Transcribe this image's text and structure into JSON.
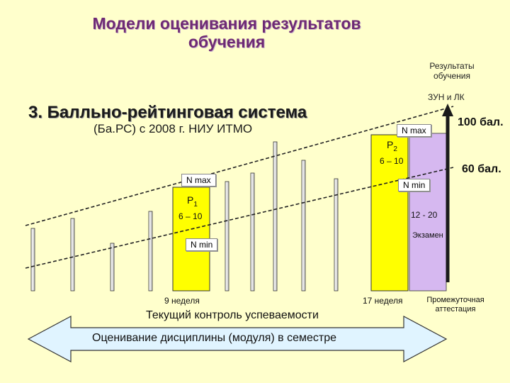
{
  "title_line1": "Модели оценивания результатов",
  "title_line2": "обучения",
  "system_title": "3. Балльно-рейтинговая система",
  "system_subtitle": "(Ба.РС) с 2008 г. НИУ ИТМО",
  "results_label": "Результаты обучения",
  "zun_label": "ЗУН и ЛК",
  "max_points": "100 бал.",
  "pass_points": "60 бал.",
  "p2": {
    "letter": "P",
    "index": "2",
    "range": "6 – 10",
    "n_max": "N max",
    "n_min": "N min"
  },
  "p1": {
    "letter": "P",
    "index": "1",
    "range": "6 – 10",
    "n_max": "N max",
    "n_min": "N min"
  },
  "exam": {
    "range": "12 - 20",
    "label": "Экзамен"
  },
  "week9": "9 неделя",
  "week17": "17 неделя",
  "intermediate": "Промежуточная аттестация",
  "current_control": "Текущий контроль успеваемости",
  "arrow_text": "Оценивание дисциплины (модуля) в семестре",
  "colors": {
    "yellow": "#ffff00",
    "lavender": "#d6b8f0",
    "blue": "#1f3fa8",
    "title": "#6e2a74"
  }
}
